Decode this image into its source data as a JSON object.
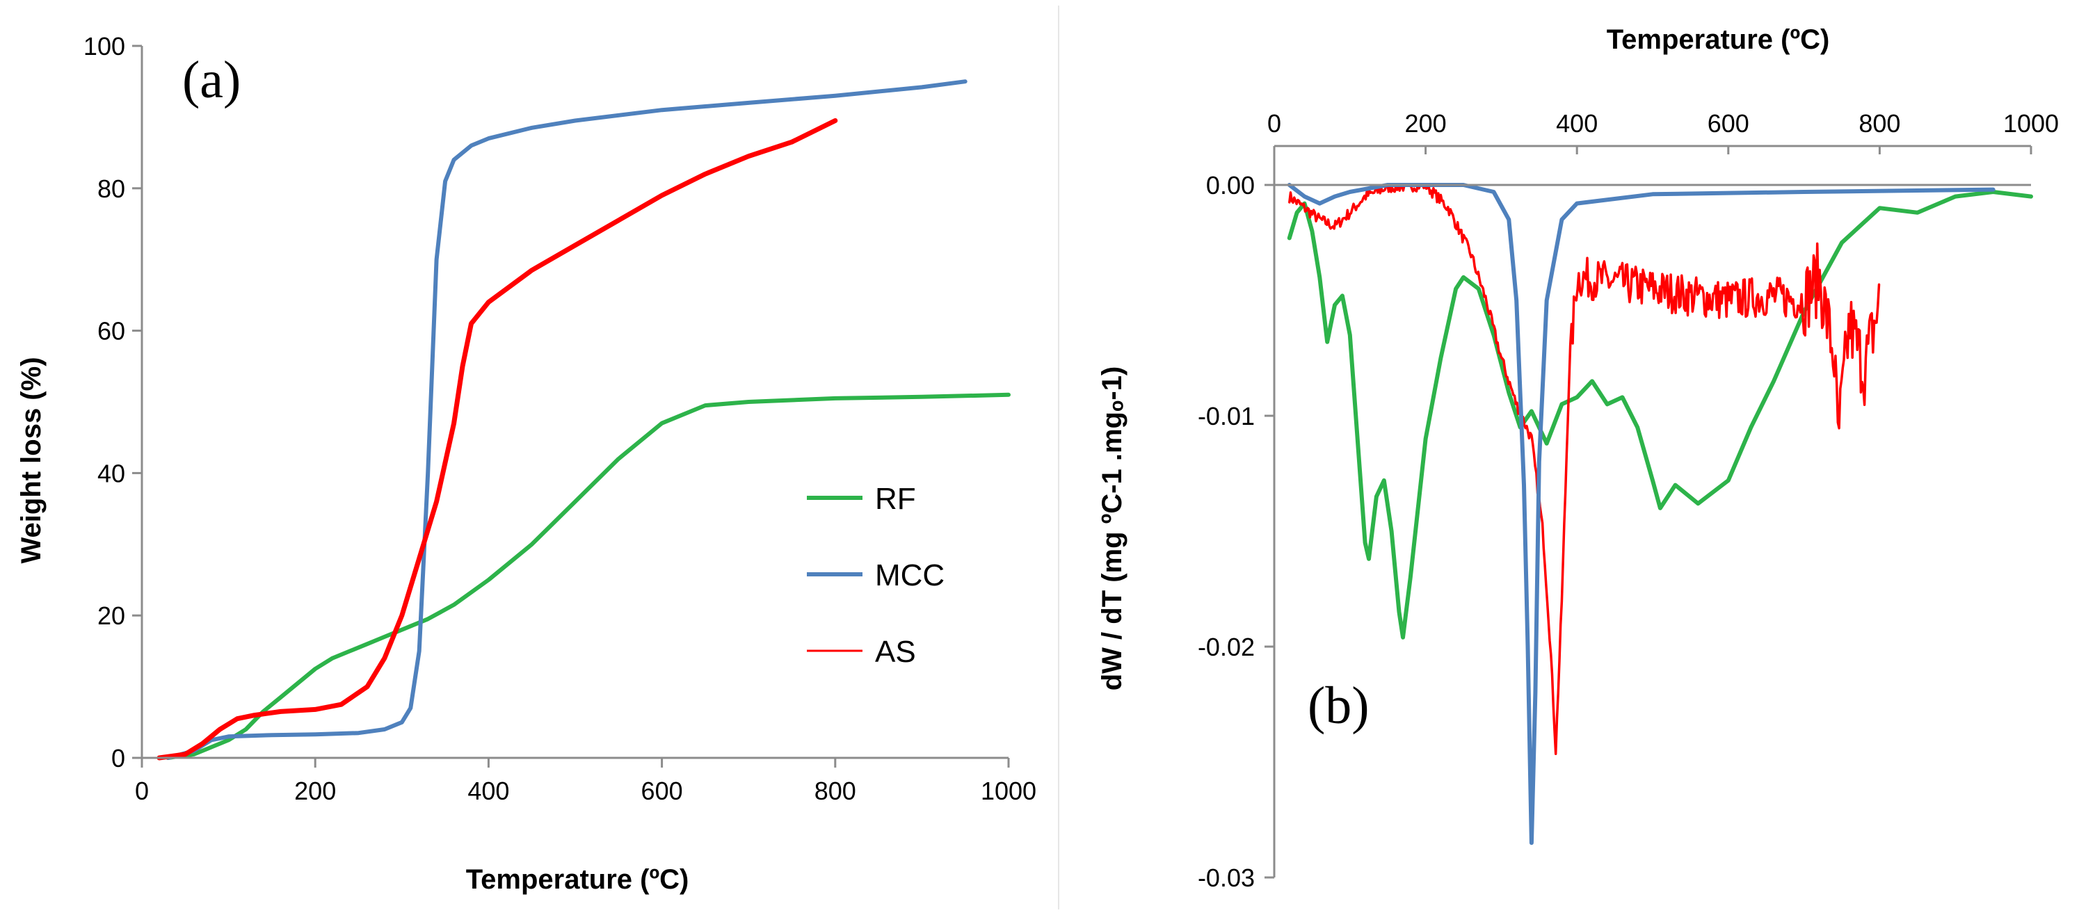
{
  "chart_data": [
    {
      "panel": "(a)",
      "type": "line",
      "title": "",
      "xlabel": "Temperature (ºC)",
      "ylabel": "Weight loss (%)",
      "xlim": [
        0,
        1000
      ],
      "ylim": [
        0,
        100
      ],
      "xticks": [
        0,
        200,
        400,
        600,
        800,
        1000
      ],
      "yticks": [
        0,
        20,
        40,
        60,
        80,
        100
      ],
      "legend_position": "middle-right",
      "series": [
        {
          "name": "RF",
          "color": "#2db34a",
          "points": [
            [
              30,
              0
            ],
            [
              60,
              0.5
            ],
            [
              80,
              1.5
            ],
            [
              100,
              2.5
            ],
            [
              120,
              4
            ],
            [
              140,
              6.5
            ],
            [
              160,
              8.5
            ],
            [
              180,
              10.5
            ],
            [
              200,
              12.5
            ],
            [
              220,
              14
            ],
            [
              240,
              15
            ],
            [
              260,
              16
            ],
            [
              280,
              17
            ],
            [
              300,
              18
            ],
            [
              330,
              19.5
            ],
            [
              360,
              21.5
            ],
            [
              400,
              25
            ],
            [
              450,
              30
            ],
            [
              500,
              36
            ],
            [
              550,
              42
            ],
            [
              600,
              47
            ],
            [
              650,
              49.5
            ],
            [
              700,
              50
            ],
            [
              800,
              50.5
            ],
            [
              900,
              50.7
            ],
            [
              1000,
              51
            ]
          ]
        },
        {
          "name": "MCC",
          "color": "#4f81bd",
          "points": [
            [
              30,
              0
            ],
            [
              60,
              1
            ],
            [
              80,
              2.5
            ],
            [
              100,
              3
            ],
            [
              150,
              3.2
            ],
            [
              200,
              3.3
            ],
            [
              250,
              3.5
            ],
            [
              280,
              4
            ],
            [
              300,
              5
            ],
            [
              310,
              7
            ],
            [
              320,
              15
            ],
            [
              330,
              40
            ],
            [
              340,
              70
            ],
            [
              350,
              81
            ],
            [
              360,
              84
            ],
            [
              380,
              86
            ],
            [
              400,
              87
            ],
            [
              450,
              88.5
            ],
            [
              500,
              89.5
            ],
            [
              600,
              91
            ],
            [
              700,
              92
            ],
            [
              800,
              93
            ],
            [
              900,
              94.2
            ],
            [
              950,
              95
            ]
          ]
        },
        {
          "name": "AS",
          "color": "#ff0000",
          "points": [
            [
              20,
              0
            ],
            [
              50,
              0.5
            ],
            [
              70,
              2
            ],
            [
              90,
              4
            ],
            [
              110,
              5.5
            ],
            [
              130,
              6
            ],
            [
              160,
              6.5
            ],
            [
              200,
              6.8
            ],
            [
              230,
              7.5
            ],
            [
              260,
              10
            ],
            [
              280,
              14
            ],
            [
              300,
              20
            ],
            [
              320,
              28
            ],
            [
              340,
              36
            ],
            [
              360,
              47
            ],
            [
              370,
              55
            ],
            [
              380,
              61
            ],
            [
              400,
              64
            ],
            [
              450,
              68.5
            ],
            [
              500,
              72
            ],
            [
              550,
              75.5
            ],
            [
              600,
              79
            ],
            [
              650,
              82
            ],
            [
              700,
              84.5
            ],
            [
              750,
              86.5
            ],
            [
              800,
              89.5
            ]
          ]
        }
      ]
    },
    {
      "panel": "(b)",
      "type": "line",
      "title": "",
      "xlabel": "Temperature (ºC)",
      "ylabel": "dW / dT  (mg  ºC-1 .mgₒ-1)",
      "xlim": [
        0,
        1000
      ],
      "ylim": [
        -0.03,
        0
      ],
      "xticks": [
        0,
        200,
        400,
        600,
        800,
        1000
      ],
      "yticks": [
        0,
        -0.01,
        -0.02,
        -0.03
      ],
      "ytick_labels": [
        "0.00",
        "-0.01",
        "-0.02",
        "-0.03"
      ],
      "xaxis_position": "top",
      "series": [
        {
          "name": "RF",
          "color": "#2db34a",
          "points": [
            [
              20,
              -0.0023
            ],
            [
              30,
              -0.0012
            ],
            [
              40,
              -0.0008
            ],
            [
              50,
              -0.002
            ],
            [
              60,
              -0.004
            ],
            [
              70,
              -0.0068
            ],
            [
              80,
              -0.0052
            ],
            [
              90,
              -0.0048
            ],
            [
              100,
              -0.0065
            ],
            [
              110,
              -0.011
            ],
            [
              120,
              -0.0155
            ],
            [
              125,
              -0.0162
            ],
            [
              135,
              -0.0135
            ],
            [
              145,
              -0.0128
            ],
            [
              155,
              -0.015
            ],
            [
              165,
              -0.0185
            ],
            [
              170,
              -0.0196
            ],
            [
              180,
              -0.017
            ],
            [
              200,
              -0.011
            ],
            [
              220,
              -0.0075
            ],
            [
              240,
              -0.0045
            ],
            [
              250,
              -0.004
            ],
            [
              270,
              -0.0045
            ],
            [
              290,
              -0.0065
            ],
            [
              310,
              -0.009
            ],
            [
              325,
              -0.0105
            ],
            [
              340,
              -0.0098
            ],
            [
              360,
              -0.0112
            ],
            [
              380,
              -0.0095
            ],
            [
              400,
              -0.0092
            ],
            [
              420,
              -0.0085
            ],
            [
              440,
              -0.0095
            ],
            [
              460,
              -0.0092
            ],
            [
              480,
              -0.0105
            ],
            [
              500,
              -0.0128
            ],
            [
              510,
              -0.014
            ],
            [
              530,
              -0.013
            ],
            [
              560,
              -0.0138
            ],
            [
              600,
              -0.0128
            ],
            [
              630,
              -0.0105
            ],
            [
              660,
              -0.0085
            ],
            [
              700,
              -0.0055
            ],
            [
              750,
              -0.0025
            ],
            [
              800,
              -0.001
            ],
            [
              850,
              -0.0012
            ],
            [
              900,
              -0.0005
            ],
            [
              950,
              -0.0003
            ],
            [
              1000,
              -0.0005
            ]
          ]
        },
        {
          "name": "MCC",
          "color": "#4f81bd",
          "points": [
            [
              20,
              0
            ],
            [
              40,
              -0.0005
            ],
            [
              60,
              -0.0008
            ],
            [
              80,
              -0.0005
            ],
            [
              100,
              -0.0003
            ],
            [
              150,
              0
            ],
            [
              250,
              0
            ],
            [
              290,
              -0.0003
            ],
            [
              310,
              -0.0015
            ],
            [
              320,
              -0.005
            ],
            [
              330,
              -0.013
            ],
            [
              335,
              -0.02
            ],
            [
              340,
              -0.0285
            ],
            [
              345,
              -0.022
            ],
            [
              350,
              -0.012
            ],
            [
              360,
              -0.005
            ],
            [
              380,
              -0.0015
            ],
            [
              400,
              -0.0008
            ],
            [
              500,
              -0.0004
            ],
            [
              700,
              -0.0003
            ],
            [
              950,
              -0.0002
            ]
          ]
        },
        {
          "name": "AS",
          "color": "#ff0000",
          "points": [
            [
              20,
              -0.0005
            ],
            [
              40,
              -0.001
            ],
            [
              60,
              -0.0015
            ],
            [
              80,
              -0.0018
            ],
            [
              100,
              -0.0012
            ],
            [
              120,
              -0.0005
            ],
            [
              150,
              -0.0001
            ],
            [
              200,
              0
            ],
            [
              230,
              -0.001
            ],
            [
              260,
              -0.003
            ],
            [
              280,
              -0.005
            ],
            [
              300,
              -0.0075
            ],
            [
              320,
              -0.0095
            ],
            [
              340,
              -0.011
            ],
            [
              355,
              -0.015
            ],
            [
              365,
              -0.02
            ],
            [
              372,
              -0.0245
            ],
            [
              380,
              -0.018
            ],
            [
              390,
              -0.008
            ],
            [
              400,
              -0.004
            ],
            [
              450,
              -0.0042
            ],
            [
              500,
              -0.0045
            ],
            [
              550,
              -0.0048
            ],
            [
              600,
              -0.005
            ],
            [
              650,
              -0.0048
            ],
            [
              700,
              -0.005
            ],
            [
              720,
              -0.004
            ],
            [
              740,
              -0.0075
            ],
            [
              745,
              -0.011
            ],
            [
              760,
              -0.006
            ],
            [
              780,
              -0.008
            ],
            [
              800,
              -0.005
            ]
          ]
        }
      ]
    }
  ]
}
